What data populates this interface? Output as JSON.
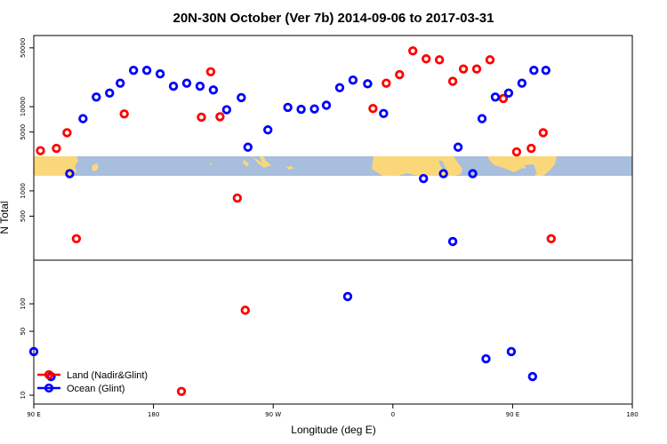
{
  "chart_data": {
    "type": "scatter",
    "title": "20N-30N October (Ver 7b)   2014-09-06 to 2017-03-31",
    "xlabel": "Longitude (deg E)",
    "ylabel": "N Total",
    "x_ticks": [
      "90 E",
      "180",
      "90 W",
      "0",
      "90 E",
      "180"
    ],
    "x_tick_values": [
      90,
      180,
      270,
      360,
      450,
      540
    ],
    "xlim": [
      90,
      540
    ],
    "log_scale_y": true,
    "grid": false,
    "legend_position": "bottom-left",
    "colors": {
      "land": "#ff0000",
      "ocean": "#0000ff",
      "map_ocean": "#a7bedc",
      "map_land": "#fad87a"
    },
    "top_panel": {
      "ylim": [
        150,
        70000
      ],
      "y_ticks": [
        "500",
        "1000",
        "5000",
        "10000",
        "50000"
      ],
      "y_tick_values": [
        500,
        1000,
        5000,
        10000,
        50000
      ]
    },
    "bottom_panel": {
      "ylim": [
        8,
        300
      ],
      "y_ticks": [
        "10",
        "50",
        "100"
      ],
      "y_tick_values": [
        10,
        50,
        100
      ]
    },
    "series": [
      {
        "name": "Land (Nadir&Glint)",
        "color": "#ff0000",
        "top": [
          [
            95,
            3000
          ],
          [
            107,
            3200
          ],
          [
            115,
            4900
          ],
          [
            122,
            270
          ],
          [
            158,
            8200
          ],
          [
            216,
            7500
          ],
          [
            223,
            26000
          ],
          [
            230,
            7600
          ],
          [
            243,
            820
          ],
          [
            345,
            9500
          ],
          [
            355,
            19000
          ],
          [
            365,
            24000
          ],
          [
            375,
            46000
          ],
          [
            385,
            37000
          ],
          [
            395,
            36000
          ],
          [
            405,
            20000
          ],
          [
            413,
            28000
          ],
          [
            423,
            28000
          ],
          [
            433,
            36000
          ],
          [
            443,
            12500
          ],
          [
            453,
            2900
          ],
          [
            464,
            3200
          ],
          [
            473,
            4900
          ],
          [
            479,
            270
          ]
        ],
        "bottom": [
          [
            201,
            11
          ],
          [
            249,
            85
          ]
        ]
      },
      {
        "name": "Ocean (Glint)",
        "color": "#0000ff",
        "top": [
          [
            117,
            1600
          ],
          [
            127,
            7200
          ],
          [
            137,
            13000
          ],
          [
            147,
            14500
          ],
          [
            155,
            19000
          ],
          [
            165,
            27000
          ],
          [
            175,
            27000
          ],
          [
            185,
            24500
          ],
          [
            195,
            17500
          ],
          [
            205,
            19000
          ],
          [
            215,
            17500
          ],
          [
            225,
            15800
          ],
          [
            235,
            9200
          ],
          [
            246,
            12800
          ],
          [
            251,
            3300
          ],
          [
            266,
            5300
          ],
          [
            281,
            9800
          ],
          [
            291,
            9300
          ],
          [
            301,
            9400
          ],
          [
            310,
            10400
          ],
          [
            320,
            16800
          ],
          [
            330,
            20700
          ],
          [
            341,
            18700
          ],
          [
            353,
            8300
          ],
          [
            383,
            1400
          ],
          [
            398,
            1600
          ],
          [
            405,
            250
          ],
          [
            409,
            3300
          ],
          [
            420,
            1600
          ],
          [
            427,
            7200
          ],
          [
            437,
            13000
          ],
          [
            447,
            14500
          ],
          [
            457,
            19000
          ],
          [
            466,
            27000
          ],
          [
            475,
            27000
          ]
        ],
        "bottom": [
          [
            90,
            30
          ],
          [
            103,
            16
          ],
          [
            326,
            120
          ],
          [
            430,
            25
          ],
          [
            449,
            30
          ],
          [
            465,
            16
          ]
        ]
      }
    ]
  }
}
